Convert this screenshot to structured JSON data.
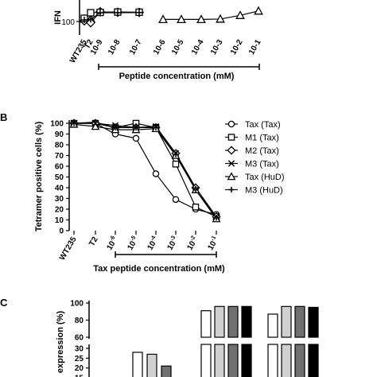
{
  "chart_data": [
    {
      "panel": "",
      "type": "line",
      "ylabel": "IFN",
      "ytick_labels": [
        "100"
      ],
      "x_categories": [
        "WT235",
        "T2",
        "10-9",
        "10-8",
        "10-7",
        "10-6",
        "10-5",
        "10-4",
        "10-3",
        "10-2",
        "10-1"
      ],
      "bracket_label": "Peptide concentration (mM)",
      "series": [
        {
          "marker": "triangle",
          "values": [
            115,
            117,
            null,
            null,
            null,
            112,
            112,
            112,
            114,
            135,
            160
          ]
        },
        {
          "marker": "diamond",
          "values": [
            104,
            93,
            155,
            153,
            152,
            null,
            null,
            null,
            null,
            null,
            null
          ]
        },
        {
          "marker": "square",
          "values": [
            118,
            150,
            152,
            154,
            153,
            null,
            null,
            null,
            null,
            null,
            null
          ]
        },
        {
          "marker": "plus",
          "values": [
            109,
            112,
            150,
            150,
            151,
            null,
            null,
            null,
            null,
            null,
            null
          ]
        }
      ]
    },
    {
      "panel": "B",
      "type": "line",
      "ylabel": "Tetramer positive cells (%)",
      "ylim": [
        0,
        100
      ],
      "yticks": [
        0,
        10,
        20,
        30,
        40,
        50,
        60,
        70,
        80,
        90,
        100
      ],
      "x_categories": [
        "WT235",
        "T2",
        "10-6",
        "10-5",
        "10-4",
        "10-3",
        "10-2",
        "10-1"
      ],
      "x_tick_labels": [
        {
          "text": "WT235"
        },
        {
          "text": "T2"
        },
        {
          "base": "10",
          "exp": "-6"
        },
        {
          "base": "10",
          "exp": "-5"
        },
        {
          "base": "10",
          "exp": "-4"
        },
        {
          "base": "10",
          "exp": "-3"
        },
        {
          "base": "10",
          "exp": "-2"
        },
        {
          "base": "10",
          "exp": "-1"
        }
      ],
      "bracket_label": "Tax peptide concentration (mM)",
      "legend_position": "right",
      "series": [
        {
          "name": "Tax (Tax)",
          "marker": "circle",
          "values": [
            100,
            100,
            90,
            86,
            53,
            29,
            20,
            15
          ]
        },
        {
          "name": "M1 (Tax)",
          "marker": "square",
          "values": [
            100,
            100,
            96,
            100,
            96,
            62,
            22,
            13
          ]
        },
        {
          "name": "M2 (Tax)",
          "marker": "diamond",
          "values": [
            100,
            100,
            96,
            96,
            96,
            72,
            40,
            13
          ]
        },
        {
          "name": "M3 (Tax)",
          "marker": "x",
          "values": [
            100,
            100,
            98,
            96,
            97,
            72,
            38,
            12
          ]
        },
        {
          "name": "Tax (HuD)",
          "marker": "triangle",
          "values": [
            99,
            97,
            94,
            94,
            95,
            70,
            38,
            11
          ]
        },
        {
          "name": "M3 (HuD)",
          "marker": "plus",
          "values": [
            100,
            101,
            96,
            96,
            96,
            71,
            38,
            12
          ]
        }
      ]
    },
    {
      "panel": "C",
      "type": "bar",
      "ylabel": "expression (%)",
      "ytick_labels_upper": [
        "100",
        "80",
        "60"
      ],
      "ytick_labels_lower": [
        "30",
        "25",
        "20",
        "15"
      ],
      "bars": [
        {
          "fill": "#ffffff",
          "value": 28
        },
        {
          "fill": "#d0d0d0",
          "value": 27
        },
        {
          "fill": "#707070",
          "value": 21
        },
        {
          "fill": "#ffffff",
          "value": 91
        },
        {
          "fill": "#d0d0d0",
          "value": 96
        },
        {
          "fill": "#707070",
          "value": 96
        },
        {
          "fill": "#000000",
          "value": 96
        },
        {
          "fill": "#ffffff",
          "value": 87
        },
        {
          "fill": "#d0d0d0",
          "value": 96
        },
        {
          "fill": "#707070",
          "value": 96
        },
        {
          "fill": "#000000",
          "value": 95
        }
      ]
    }
  ]
}
